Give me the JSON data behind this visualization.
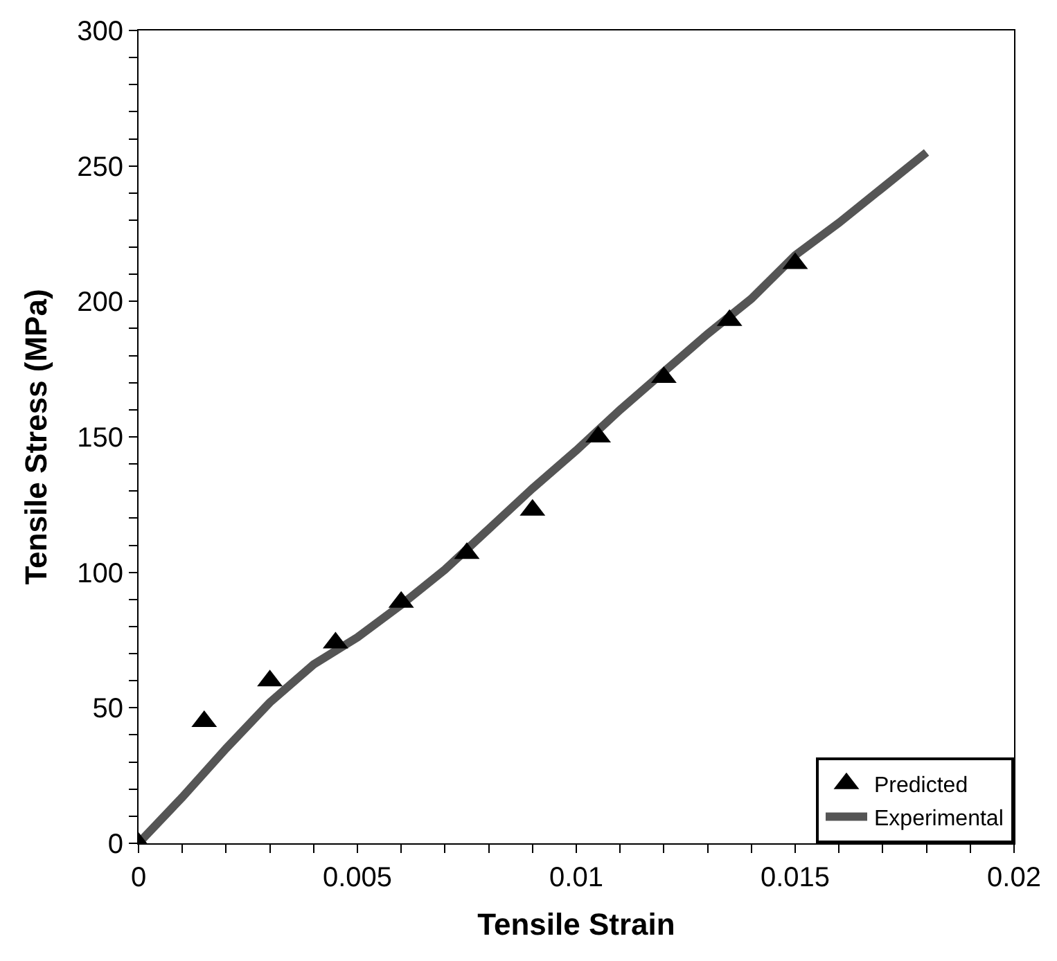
{
  "chart_data": {
    "type": "line",
    "xlabel": "Tensile Strain",
    "ylabel": "Tensile Stress (MPa)",
    "xlim": [
      0,
      0.02
    ],
    "ylim": [
      0,
      300
    ],
    "xticks": [
      0,
      {
        "value": 0.001,
        "label": null
      },
      {
        "value": 0.002,
        "label": null
      },
      {
        "value": 0.003,
        "label": null
      },
      {
        "value": 0.004,
        "label": null
      },
      0.005,
      {
        "value": 0.006,
        "label": null
      },
      {
        "value": 0.007,
        "label": null
      },
      {
        "value": 0.008,
        "label": null
      },
      {
        "value": 0.009,
        "label": null
      },
      0.01,
      {
        "value": 0.011,
        "label": null
      },
      {
        "value": 0.012,
        "label": null
      },
      {
        "value": 0.013,
        "label": null
      },
      {
        "value": 0.014,
        "label": null
      },
      0.015,
      {
        "value": 0.016,
        "label": null
      },
      {
        "value": 0.017,
        "label": null
      },
      {
        "value": 0.018,
        "label": null
      },
      {
        "value": 0.019,
        "label": null
      },
      0.02
    ],
    "yticks": [
      0,
      {
        "value": 10,
        "label": null
      },
      {
        "value": 20,
        "label": null
      },
      {
        "value": 30,
        "label": null
      },
      {
        "value": 40,
        "label": null
      },
      50,
      {
        "value": 60,
        "label": null
      },
      {
        "value": 70,
        "label": null
      },
      {
        "value": 80,
        "label": null
      },
      {
        "value": 90,
        "label": null
      },
      100,
      {
        "value": 110,
        "label": null
      },
      {
        "value": 120,
        "label": null
      },
      {
        "value": 130,
        "label": null
      },
      {
        "value": 140,
        "label": null
      },
      150,
      {
        "value": 160,
        "label": null
      },
      {
        "value": 170,
        "label": null
      },
      {
        "value": 180,
        "label": null
      },
      {
        "value": 190,
        "label": null
      },
      200,
      {
        "value": 210,
        "label": null
      },
      {
        "value": 220,
        "label": null
      },
      {
        "value": 230,
        "label": null
      },
      {
        "value": 240,
        "label": null
      },
      250,
      {
        "value": 260,
        "label": null
      },
      {
        "value": 270,
        "label": null
      },
      {
        "value": 280,
        "label": null
      },
      {
        "value": 290,
        "label": null
      },
      300
    ],
    "legend": "bottom right",
    "series": [
      {
        "name": "Predicted",
        "type": "scatter",
        "marker": "triangle",
        "color": "#000000",
        "x": [
          0,
          0.0015,
          0.003,
          0.0045,
          0.006,
          0.0075,
          0.009,
          0.0105,
          0.012,
          0.0135,
          0.015
        ],
        "values": [
          0,
          45,
          60,
          74,
          89,
          107,
          123,
          150,
          172,
          193,
          214
        ]
      },
      {
        "name": "Experimental",
        "line_style": "solid",
        "color": "#555555",
        "x": [
          0,
          0.001,
          0.002,
          0.003,
          0.004,
          0.005,
          0.006,
          0.007,
          0.008,
          0.009,
          0.01,
          0.011,
          0.012,
          0.013,
          0.014,
          0.015,
          0.016,
          0.017,
          0.018
        ],
        "values": [
          0,
          17,
          35,
          52,
          66,
          76,
          88,
          101,
          116,
          131,
          145,
          160,
          174,
          188,
          201,
          217,
          229,
          242,
          255
        ]
      }
    ]
  }
}
